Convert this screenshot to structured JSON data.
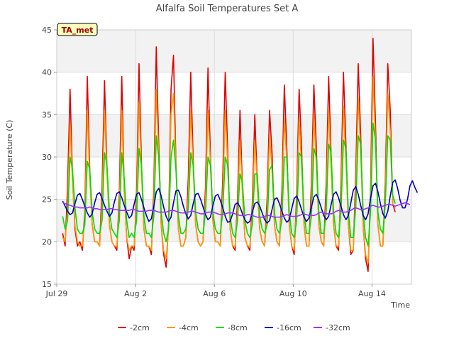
{
  "chart_data": {
    "type": "line",
    "title": "Alfalfa Soil Temperatures Set A",
    "xlabel": "Time",
    "ylabel": "Soil Temperature (C)",
    "annotation": "TA_met",
    "xlim": [
      0,
      18
    ],
    "ylim": [
      15,
      45
    ],
    "x_ticks": [
      {
        "value": 0,
        "label": "Jul 29"
      },
      {
        "value": 4,
        "label": "Aug 2"
      },
      {
        "value": 8,
        "label": "Aug 6"
      },
      {
        "value": 12,
        "label": "Aug 10"
      },
      {
        "value": 16,
        "label": "Aug 14"
      }
    ],
    "y_ticks": [
      15,
      20,
      25,
      30,
      35,
      40,
      45
    ],
    "grid": true,
    "banded_background": true,
    "legend_position": "bottom",
    "x_start": 0.3,
    "x_step": 0.125,
    "series": [
      {
        "name": "-2cm",
        "color": "#e00000",
        "values": [
          21.0,
          19.5,
          26.5,
          38.0,
          27.5,
          21.5,
          19.5,
          20.0,
          19.0,
          23.5,
          39.5,
          28.5,
          22.0,
          20.0,
          20.0,
          19.5,
          26.5,
          39.0,
          28.5,
          22.0,
          20.0,
          19.5,
          19.0,
          25.5,
          39.5,
          26.0,
          20.5,
          18.0,
          19.5,
          19.0,
          25.5,
          41.0,
          29.0,
          21.5,
          19.5,
          19.5,
          18.5,
          26.0,
          43.0,
          31.5,
          22.0,
          18.5,
          17.0,
          22.0,
          38.0,
          42.0,
          29.0,
          21.5,
          19.5,
          19.5,
          20.5,
          27.5,
          40.0,
          29.5,
          22.0,
          20.0,
          19.5,
          20.0,
          26.5,
          40.5,
          30.0,
          22.5,
          20.0,
          20.0,
          19.5,
          27.5,
          40.0,
          30.5,
          21.5,
          19.5,
          19.0,
          25.0,
          35.5,
          26.0,
          20.5,
          19.5,
          19.0,
          24.5,
          35.0,
          27.0,
          21.5,
          20.0,
          19.5,
          25.0,
          35.5,
          30.5,
          22.0,
          20.0,
          19.5,
          26.0,
          38.5,
          31.0,
          22.0,
          19.5,
          18.5,
          25.5,
          38.0,
          31.0,
          22.0,
          19.5,
          19.5,
          27.0,
          38.5,
          31.0,
          22.0,
          20.0,
          19.5,
          27.0,
          39.5,
          30.0,
          22.0,
          19.5,
          19.0,
          27.0,
          40.0,
          31.5,
          22.0,
          18.5,
          19.0,
          28.0,
          41.0,
          32.5,
          22.0,
          18.0,
          16.5,
          26.0,
          44.0,
          34.0,
          22.0,
          19.5,
          19.5,
          27.0,
          41.0,
          35.5,
          24.5,
          23.5
        ]
      },
      {
        "name": "-4cm",
        "color": "#ff9900",
        "values": [
          20.5,
          20.0,
          24.0,
          34.0,
          27.0,
          22.0,
          20.0,
          19.5,
          19.5,
          22.5,
          35.5,
          27.5,
          22.0,
          20.0,
          20.0,
          19.5,
          24.5,
          35.5,
          28.0,
          22.0,
          20.0,
          19.5,
          19.5,
          24.0,
          35.5,
          26.0,
          20.5,
          19.0,
          19.5,
          19.5,
          24.0,
          36.5,
          28.0,
          21.5,
          19.5,
          19.5,
          19.0,
          24.5,
          38.0,
          30.0,
          22.0,
          19.0,
          18.0,
          21.5,
          35.0,
          37.5,
          28.5,
          21.5,
          19.5,
          19.5,
          20.5,
          25.5,
          35.5,
          28.5,
          22.0,
          20.0,
          19.5,
          20.0,
          25.0,
          35.5,
          29.0,
          22.5,
          20.0,
          20.0,
          19.5,
          25.5,
          35.5,
          29.0,
          21.5,
          19.5,
          19.5,
          23.5,
          32.0,
          25.5,
          20.5,
          19.5,
          19.5,
          23.0,
          32.0,
          26.5,
          21.5,
          20.0,
          19.5,
          23.5,
          32.5,
          28.5,
          22.0,
          20.0,
          19.5,
          24.5,
          34.5,
          29.5,
          22.0,
          19.5,
          19.0,
          24.0,
          34.5,
          29.0,
          22.0,
          19.5,
          19.5,
          25.0,
          35.0,
          29.0,
          22.0,
          20.0,
          19.5,
          25.0,
          35.5,
          28.5,
          22.0,
          19.5,
          19.5,
          25.5,
          36.0,
          29.5,
          22.0,
          19.0,
          19.0,
          26.0,
          37.0,
          30.5,
          22.0,
          18.5,
          17.5,
          24.5,
          39.5,
          32.0,
          22.0,
          19.5,
          19.5,
          25.5,
          37.5,
          33.0,
          24.5,
          24.0
        ]
      },
      {
        "name": "-8cm",
        "color": "#00dd00",
        "values": [
          23.0,
          21.5,
          22.5,
          30.0,
          28.5,
          24.0,
          21.5,
          21.0,
          21.0,
          22.0,
          29.5,
          28.5,
          23.5,
          21.5,
          21.0,
          21.0,
          22.5,
          30.5,
          29.0,
          23.5,
          21.5,
          21.0,
          20.5,
          22.5,
          30.5,
          27.5,
          22.5,
          20.5,
          21.0,
          20.5,
          22.5,
          31.0,
          29.0,
          23.0,
          21.0,
          21.0,
          20.5,
          23.0,
          32.5,
          30.0,
          23.5,
          21.0,
          20.0,
          21.5,
          30.0,
          32.0,
          28.5,
          23.0,
          21.0,
          21.0,
          21.5,
          24.0,
          30.5,
          29.0,
          23.5,
          21.5,
          21.0,
          21.0,
          23.5,
          30.0,
          29.0,
          23.5,
          21.5,
          21.0,
          21.0,
          23.5,
          30.0,
          29.0,
          23.0,
          21.0,
          20.5,
          22.5,
          28.0,
          27.0,
          22.5,
          21.0,
          20.5,
          22.0,
          28.0,
          28.0,
          23.0,
          21.5,
          21.0,
          22.0,
          28.5,
          29.0,
          23.5,
          21.5,
          21.0,
          22.5,
          30.0,
          30.0,
          23.5,
          21.0,
          20.5,
          22.5,
          30.5,
          30.0,
          23.5,
          21.0,
          21.0,
          23.0,
          31.0,
          30.0,
          23.5,
          21.0,
          21.0,
          23.5,
          31.5,
          30.5,
          23.5,
          21.0,
          20.5,
          23.5,
          32.0,
          31.0,
          23.5,
          20.5,
          20.5,
          24.0,
          32.5,
          31.5,
          23.5,
          20.5,
          19.5,
          23.5,
          34.0,
          32.0,
          23.5,
          21.5,
          21.0,
          24.5,
          32.5,
          32.0,
          25.5,
          24.5
        ]
      },
      {
        "name": "-16cm",
        "color": "#0000bb",
        "values": [
          24.8,
          24.2,
          23.6,
          23.2,
          23.4,
          24.5,
          25.5,
          25.7,
          25.0,
          24.2,
          23.4,
          22.9,
          23.3,
          24.6,
          25.6,
          25.8,
          25.1,
          24.3,
          23.6,
          23.0,
          23.4,
          24.7,
          25.7,
          25.9,
          25.2,
          24.3,
          23.5,
          22.8,
          23.1,
          24.4,
          25.6,
          25.8,
          25.0,
          24.0,
          23.1,
          22.4,
          22.7,
          24.2,
          25.9,
          26.3,
          25.4,
          24.1,
          23.0,
          22.4,
          22.9,
          24.6,
          26.0,
          26.1,
          25.3,
          24.2,
          23.3,
          22.7,
          23.1,
          24.5,
          25.6,
          25.7,
          25.0,
          24.1,
          23.2,
          22.6,
          22.9,
          24.3,
          25.4,
          25.6,
          24.9,
          24.0,
          23.0,
          22.3,
          22.4,
          23.3,
          24.4,
          24.6,
          24.1,
          23.3,
          22.6,
          22.2,
          22.4,
          23.5,
          24.5,
          24.7,
          24.2,
          23.4,
          22.6,
          22.2,
          22.5,
          23.8,
          25.0,
          25.2,
          24.5,
          23.6,
          22.8,
          22.3,
          22.6,
          23.9,
          25.1,
          25.4,
          24.7,
          23.8,
          22.9,
          22.4,
          22.8,
          24.1,
          25.3,
          25.6,
          24.9,
          24.0,
          23.1,
          22.6,
          23.0,
          24.4,
          25.6,
          25.9,
          25.2,
          24.2,
          23.2,
          22.6,
          23.1,
          24.6,
          26.1,
          26.5,
          25.6,
          24.3,
          23.1,
          22.6,
          23.3,
          25.1,
          26.6,
          26.9,
          25.9,
          24.5,
          23.3,
          22.8,
          23.6,
          25.4,
          27.0,
          27.3,
          26.3,
          24.9,
          24.0,
          24.0,
          25.0,
          26.6,
          27.2,
          26.4,
          25.8
        ]
      },
      {
        "name": "-32cm",
        "color": "#9933ff",
        "values": [
          24.6,
          24.5,
          24.4,
          24.3,
          24.2,
          24.1,
          24.1,
          24.0,
          24.0,
          24.0,
          24.0,
          24.1,
          24.0,
          23.9,
          23.9,
          23.8,
          23.8,
          23.8,
          23.8,
          23.9,
          23.9,
          23.8,
          23.8,
          23.7,
          23.7,
          23.7,
          23.7,
          23.7,
          23.8,
          23.8,
          23.7,
          23.6,
          23.6,
          23.6,
          23.6,
          23.7,
          23.7,
          23.7,
          23.6,
          23.5,
          23.5,
          23.5,
          23.5,
          23.6,
          23.7,
          23.7,
          23.6,
          23.5,
          23.4,
          23.4,
          23.4,
          23.5,
          23.6,
          23.6,
          23.5,
          23.4,
          23.3,
          23.3,
          23.4,
          23.5,
          23.5,
          23.5,
          23.4,
          23.3,
          23.2,
          23.2,
          23.3,
          23.4,
          23.4,
          23.4,
          23.3,
          23.2,
          23.1,
          23.1,
          23.1,
          23.2,
          23.2,
          23.1,
          23.0,
          22.9,
          22.9,
          22.9,
          23.0,
          23.1,
          23.1,
          23.0,
          22.9,
          22.9,
          22.9,
          23.0,
          23.1,
          23.2,
          23.1,
          23.0,
          23.0,
          23.0,
          23.1,
          23.2,
          23.3,
          23.2,
          23.1,
          23.1,
          23.1,
          23.2,
          23.4,
          23.5,
          23.4,
          23.3,
          23.3,
          23.3,
          23.4,
          23.6,
          23.7,
          23.6,
          23.5,
          23.5,
          23.6,
          23.7,
          23.9,
          24.0,
          23.9,
          23.8,
          23.8,
          23.9,
          24.0,
          24.2,
          24.3,
          24.2,
          24.1,
          24.1,
          24.2,
          24.3,
          24.4,
          24.4,
          24.3,
          24.2,
          24.3,
          24.4,
          24.5,
          24.6,
          24.5,
          24.4
        ]
      }
    ]
  }
}
